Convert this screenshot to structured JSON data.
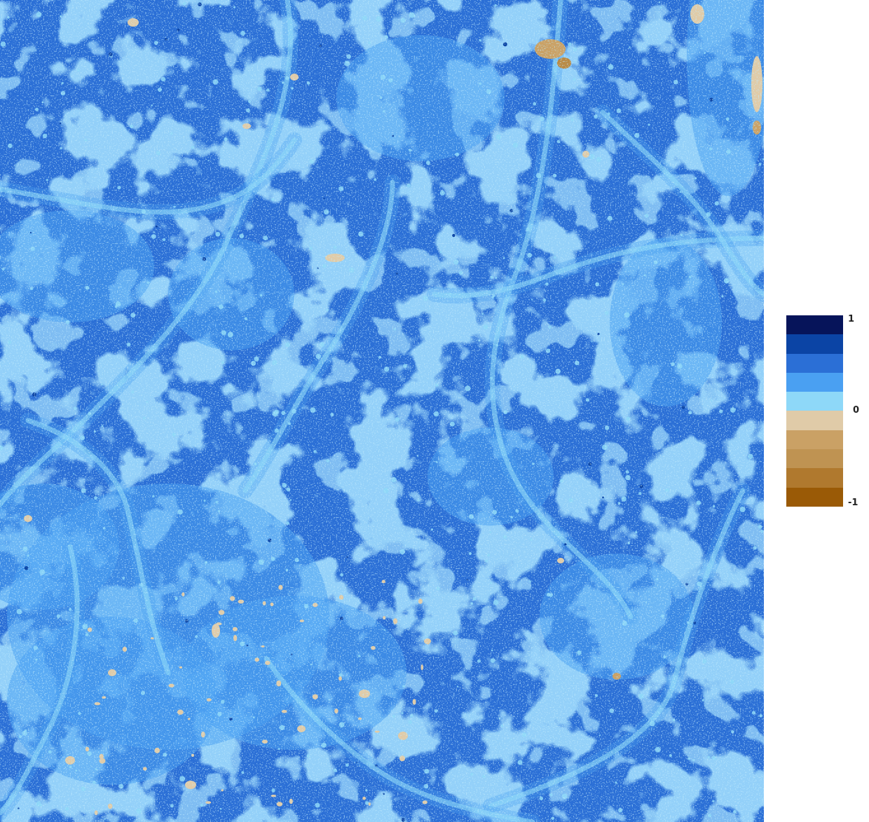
{
  "map": {
    "base_color": "#2b6fd6",
    "palette": {
      "deep": "#0b44a5",
      "dark": "#2b6fd6",
      "medium": "#4aa0f2",
      "light": "#8ed8f8",
      "sand": "#e0cba8",
      "tan": "#caa165",
      "brown": "#b98a45"
    }
  },
  "legend": {
    "max_label": "1",
    "mid_label": "0",
    "min_label": "-1",
    "colors": [
      "#06145a",
      "#0b44a5",
      "#2b6fd6",
      "#4aa0f2",
      "#8ed8f8",
      "#e0cba8",
      "#caa165",
      "#bf9352",
      "#b0792e",
      "#9a5a06"
    ]
  }
}
